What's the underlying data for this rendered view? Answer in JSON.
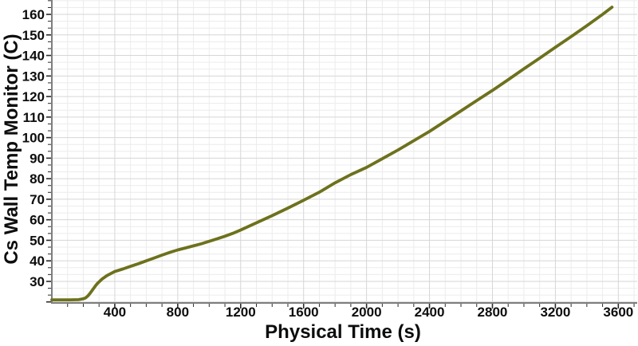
{
  "chart_data": {
    "type": "line",
    "title": "",
    "xlabel": "Physical Time (s)",
    "ylabel": "Cs Wall Temp Monitor (C)",
    "xlim": [
      0,
      3720
    ],
    "ylim": [
      19.5,
      167
    ],
    "x_major_ticks": [
      400,
      800,
      1200,
      1600,
      2000,
      2400,
      2800,
      3200,
      3600
    ],
    "x_minor_step": 100,
    "y_major_ticks": [
      30,
      40,
      50,
      60,
      70,
      80,
      90,
      100,
      110,
      120,
      130,
      140,
      150,
      160
    ],
    "y_minor_step": 3.3333,
    "grid": true,
    "legend": "none",
    "colors": {
      "line": "#6d711c",
      "grid_major": "#d6d6d6",
      "grid_minor": "#ececec",
      "spine": "#7e7e7e",
      "tick": "#2a2a2a",
      "text": "#0d0d0d",
      "background": "#ffffff"
    },
    "series": [
      {
        "name": "Cs Wall Temp Monitor",
        "points": [
          [
            0,
            21
          ],
          [
            60,
            21
          ],
          [
            120,
            21
          ],
          [
            170,
            21.1
          ],
          [
            200,
            21.5
          ],
          [
            215,
            22
          ],
          [
            230,
            23
          ],
          [
            245,
            24.4
          ],
          [
            260,
            26
          ],
          [
            275,
            27.6
          ],
          [
            290,
            29
          ],
          [
            320,
            31.2
          ],
          [
            350,
            32.8
          ],
          [
            400,
            34.8
          ],
          [
            450,
            36
          ],
          [
            500,
            37.3
          ],
          [
            550,
            38.6
          ],
          [
            600,
            40
          ],
          [
            650,
            41.4
          ],
          [
            700,
            42.8
          ],
          [
            750,
            44.1
          ],
          [
            800,
            45.3
          ],
          [
            850,
            46.3
          ],
          [
            900,
            47.3
          ],
          [
            950,
            48.3
          ],
          [
            1000,
            49.5
          ],
          [
            1050,
            50.7
          ],
          [
            1100,
            52
          ],
          [
            1150,
            53.4
          ],
          [
            1200,
            55
          ],
          [
            1300,
            58.5
          ],
          [
            1400,
            62
          ],
          [
            1500,
            65.7
          ],
          [
            1600,
            69.5
          ],
          [
            1700,
            73.4
          ],
          [
            1800,
            78
          ],
          [
            1900,
            82
          ],
          [
            2000,
            85.5
          ],
          [
            2100,
            89.7
          ],
          [
            2200,
            94
          ],
          [
            2300,
            98.5
          ],
          [
            2400,
            103
          ],
          [
            2500,
            108
          ],
          [
            2600,
            113
          ],
          [
            2700,
            118
          ],
          [
            2800,
            123
          ],
          [
            2900,
            128.2
          ],
          [
            3000,
            133.5
          ],
          [
            3100,
            138.7
          ],
          [
            3200,
            144
          ],
          [
            3300,
            149.2
          ],
          [
            3400,
            154.5
          ],
          [
            3500,
            160
          ],
          [
            3560,
            163.5
          ]
        ]
      }
    ]
  }
}
